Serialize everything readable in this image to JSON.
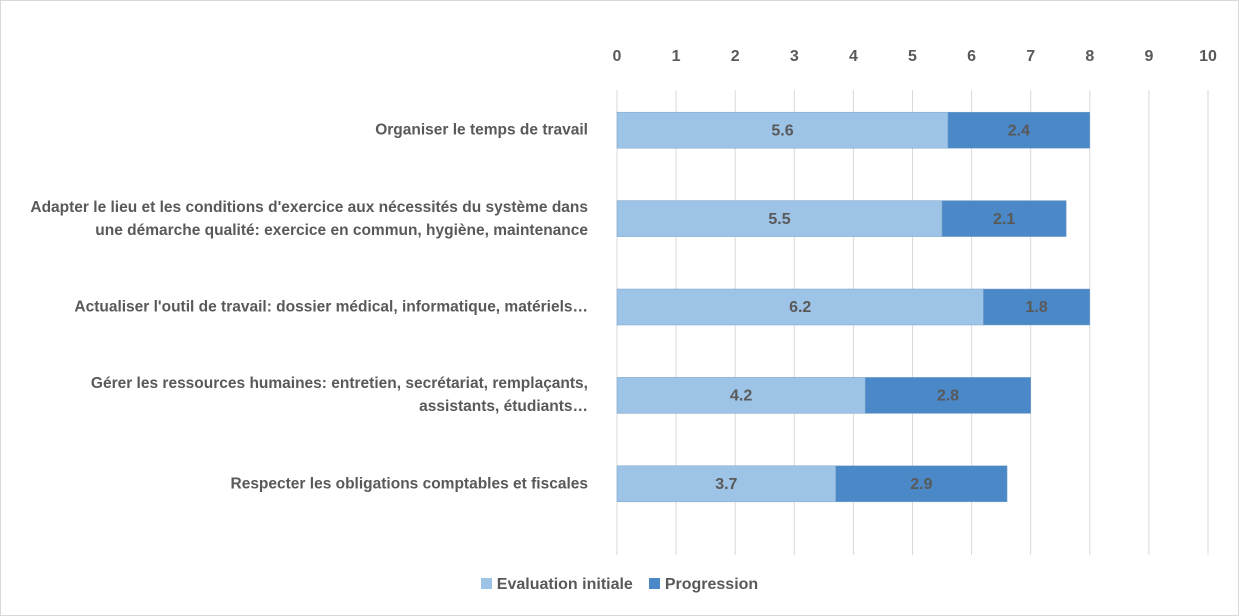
{
  "chart_data": {
    "type": "stacked_bar_horizontal",
    "categories": [
      "Organiser le temps de travail",
      "Adapter le lieu et les conditions d'exercice aux nécessités du système dans une démarche qualité: exercice en commun, hygiène, maintenance",
      "Actualiser l'outil de travail: dossier médical, informatique, matériels…",
      "Gérer les ressources humaines: entretien, secrétariat, remplaçants, assistants, étudiants…",
      "Respecter les obligations comptables et fiscales"
    ],
    "series": [
      {
        "name": "Evaluation initiale",
        "color": "#9dc3e6",
        "values": [
          5.6,
          5.5,
          6.2,
          4.2,
          3.7
        ]
      },
      {
        "name": "Progression",
        "color": "#4a88c7",
        "values": [
          2.4,
          2.1,
          1.8,
          2.8,
          2.9
        ]
      }
    ],
    "xlim": [
      0,
      10
    ],
    "xticks": [
      0,
      1,
      2,
      3,
      4,
      5,
      6,
      7,
      8,
      9,
      10
    ],
    "grid": true,
    "legend": "bottom"
  }
}
